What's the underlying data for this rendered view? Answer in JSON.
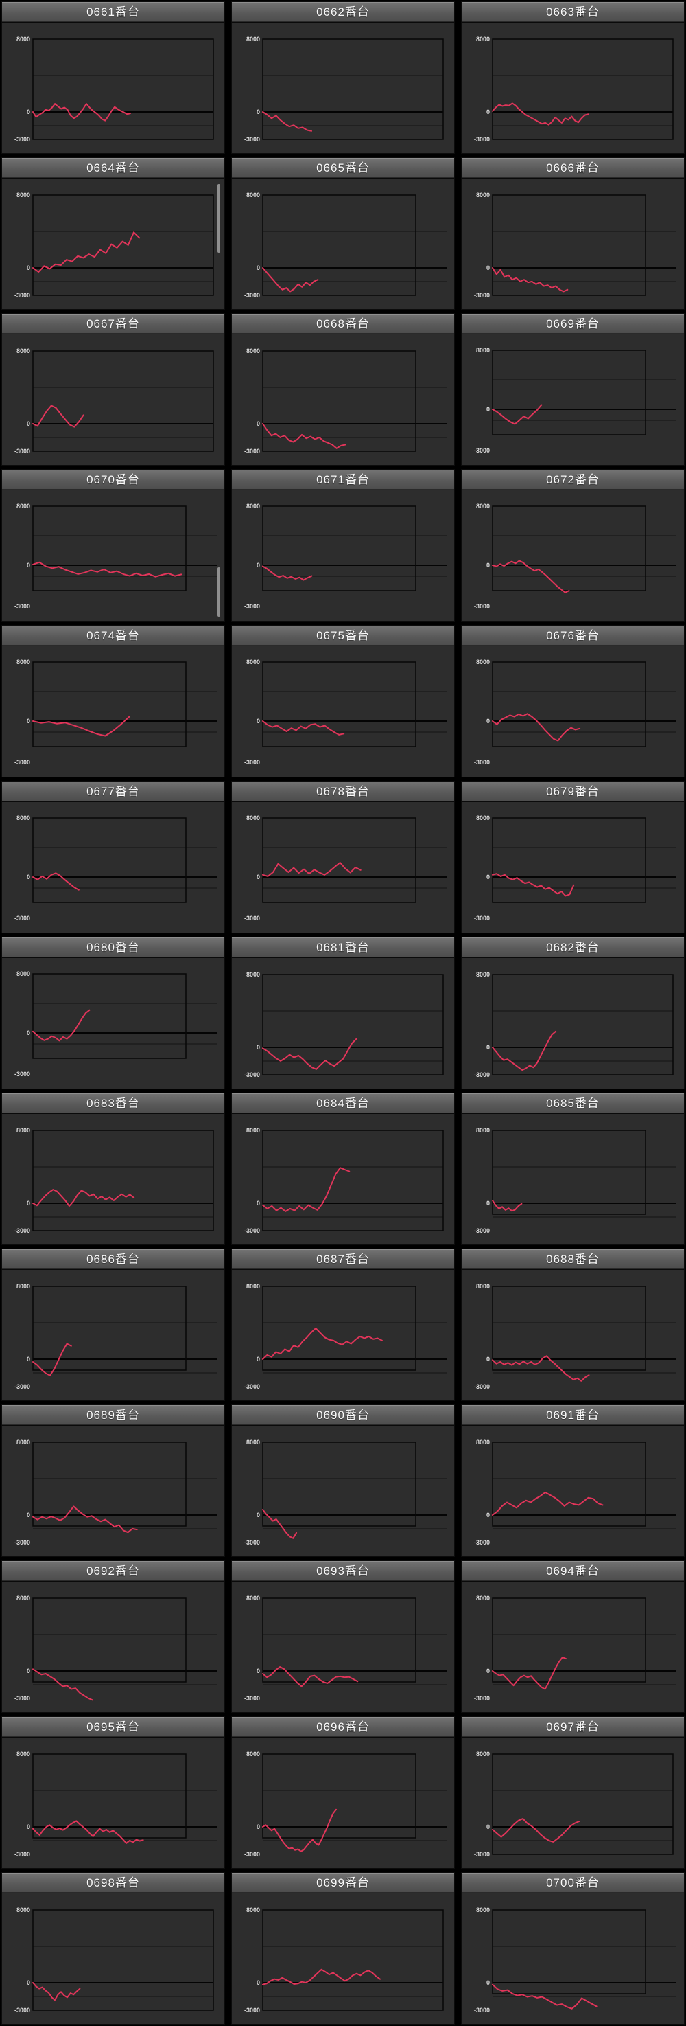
{
  "page": {
    "background": "#000000",
    "columns": 3,
    "rows": 13,
    "title_suffix": "番台"
  },
  "colors": {
    "cell_background": "#2d2d2d",
    "title_text": "#fafafa",
    "axis_text": "#dcdcdc",
    "gridline": "#1c1c1c",
    "zero_line": "#040404",
    "plot_frame": "#070707",
    "series_line": "#e2355a",
    "scrollbar": "#8f8f8f"
  },
  "axis_labels": {
    "top": "8000",
    "zero": "0",
    "bottom": "-3000"
  },
  "chart_config": {
    "type": "line",
    "ylim": [
      -3000,
      8000
    ],
    "gridlines": [
      8000,
      4000,
      0,
      -1500,
      -3000
    ],
    "legend": "none",
    "x_axis": "games played (unlabeled)",
    "y_axis": "payout balance (unlabeled)"
  },
  "chart_data": [
    {
      "machine": "0661番台",
      "id": "0661",
      "frame": "std",
      "span": 0.54,
      "values": [
        0,
        -550,
        -300,
        -100,
        250,
        150,
        450,
        900,
        600,
        350,
        500,
        250,
        -400,
        -700,
        -500,
        -100,
        350,
        900,
        500,
        150,
        -100,
        -400,
        -800,
        -950,
        -450,
        100,
        550,
        300,
        100,
        -50,
        -250,
        -150
      ]
    },
    {
      "machine": "0662番台",
      "id": "0662",
      "frame": "std",
      "span": 0.27,
      "values": [
        0,
        -300,
        -700,
        -400,
        -900,
        -1300,
        -1600,
        -1450,
        -1800,
        -1700,
        -2000,
        -2100
      ]
    },
    {
      "machine": "0663番台",
      "id": "0663",
      "frame": "std",
      "span": 0.53,
      "values": [
        100,
        500,
        800,
        650,
        750,
        700,
        950,
        700,
        300,
        0,
        -300,
        -500,
        -700,
        -900,
        -1100,
        -1300,
        -1200,
        -1400,
        -1100,
        -600,
        -900,
        -1200,
        -700,
        -850,
        -500,
        -950,
        -1150,
        -700,
        -350,
        -250
      ]
    },
    {
      "machine": "0664番台",
      "id": "0664",
      "frame": "std",
      "span": 0.59,
      "scrollbar": {
        "x": 314,
        "y": 8,
        "h": 100
      },
      "values": [
        0,
        -450,
        200,
        -100,
        400,
        300,
        900,
        700,
        1300,
        1100,
        1500,
        1200,
        2000,
        1600,
        2600,
        2200,
        2900,
        2500,
        3900,
        3300
      ]
    },
    {
      "machine": "0665番台",
      "id": "0665",
      "frame": "nw",
      "span": 0.36,
      "values": [
        0,
        -500,
        -1000,
        -1500,
        -2000,
        -2400,
        -2200,
        -2600,
        -2300,
        -1800,
        -2100,
        -1600,
        -1900,
        -1500,
        -1300
      ]
    },
    {
      "machine": "0666番台",
      "id": "0666",
      "frame": "nw",
      "span": 0.49,
      "values": [
        0,
        -700,
        -200,
        -1000,
        -800,
        -1300,
        -1100,
        -1500,
        -1300,
        -1600,
        -1500,
        -1800,
        -1600,
        -2000,
        -1900,
        -2200,
        -2000,
        -2400,
        -2600,
        -2400
      ]
    },
    {
      "machine": "0667番台",
      "id": "0667",
      "frame": "std",
      "span": 0.28,
      "values": [
        0,
        -250,
        600,
        1400,
        2000,
        1750,
        1100,
        500,
        -100,
        -350,
        200,
        950
      ]
    },
    {
      "machine": "0668番台",
      "id": "0668",
      "frame": "nw",
      "span": 0.54,
      "values": [
        0,
        -700,
        -1300,
        -1100,
        -1500,
        -1300,
        -1800,
        -2000,
        -1700,
        -1200,
        -1600,
        -1400,
        -1700,
        -1500,
        -1900,
        -2100,
        -2300,
        -2700,
        -2400,
        -2300
      ]
    },
    {
      "machine": "0669番台",
      "id": "0669",
      "frame": "nrc",
      "span": 0.32,
      "values": [
        0,
        -350,
        -800,
        -1300,
        -1700,
        -2000,
        -1500,
        -950,
        -1250,
        -650,
        -100,
        600
      ]
    },
    {
      "machine": "0670番台",
      "id": "0670",
      "frame": "nrc",
      "span": 0.97,
      "scrollbar": {
        "x": 314,
        "y": 112,
        "h": 72
      },
      "values": [
        100,
        400,
        -150,
        -400,
        -200,
        -600,
        -900,
        -1200,
        -1000,
        -700,
        -900,
        -550,
        -1000,
        -800,
        -1200,
        -1450,
        -1100,
        -1400,
        -1200,
        -1550,
        -1300,
        -1100,
        -1450,
        -1250
      ]
    },
    {
      "machine": "0671番台",
      "id": "0671",
      "frame": "nrc",
      "span": 0.32,
      "values": [
        -150,
        -450,
        -900,
        -1300,
        -1600,
        -1400,
        -1750,
        -1550,
        -1850,
        -1650,
        -2000,
        -1700,
        -1450
      ]
    },
    {
      "machine": "0672番台",
      "id": "0672",
      "frame": "nrc",
      "span": 0.5,
      "values": [
        0,
        -150,
        150,
        -100,
        250,
        500,
        250,
        600,
        350,
        -100,
        -450,
        -750,
        -550,
        -950,
        -1400,
        -1900,
        -2400,
        -2900,
        -3300,
        -3700,
        -3450
      ]
    },
    {
      "machine": "0674番台",
      "id": "0674",
      "frame": "nrc",
      "span": 0.63,
      "values": [
        0,
        -250,
        -100,
        -350,
        -200,
        -550,
        -900,
        -1350,
        -1750,
        -2000,
        -1300,
        -400,
        600
      ]
    },
    {
      "machine": "0675番台",
      "id": "0675",
      "frame": "nrc",
      "span": 0.53,
      "values": [
        0,
        -500,
        -800,
        -600,
        -1000,
        -1400,
        -950,
        -1250,
        -700,
        -1000,
        -500,
        -400,
        -800,
        -600,
        -1100,
        -1500,
        -1850,
        -1700
      ]
    },
    {
      "machine": "0676番台",
      "id": "0676",
      "frame": "nrc",
      "span": 0.57,
      "values": [
        0,
        -450,
        200,
        500,
        800,
        600,
        950,
        700,
        1000,
        600,
        100,
        -500,
        -1200,
        -1800,
        -2400,
        -2650,
        -1900,
        -1300,
        -900,
        -1150,
        -1000
      ]
    },
    {
      "machine": "0677番台",
      "id": "0677",
      "frame": "nrc",
      "span": 0.3,
      "values": [
        0,
        -350,
        100,
        -250,
        300,
        530,
        150,
        -400,
        -900,
        -1400,
        -1740
      ]
    },
    {
      "machine": "0678番台",
      "id": "0678",
      "frame": "nrc",
      "span": 0.64,
      "values": [
        300,
        100,
        650,
        1800,
        1200,
        650,
        1250,
        550,
        1050,
        450,
        1000,
        600,
        300,
        800,
        1400,
        1950,
        1150,
        600,
        1300,
        950
      ]
    },
    {
      "machine": "0679番台",
      "id": "0679",
      "frame": "nrc",
      "span": 0.53,
      "values": [
        300,
        450,
        100,
        300,
        -150,
        -350,
        -100,
        -500,
        -850,
        -700,
        -1050,
        -1350,
        -1150,
        -1650,
        -1450,
        -1850,
        -2250,
        -1950,
        -2550,
        -2350,
        -1100
      ]
    },
    {
      "machine": "0680番台",
      "id": "0680",
      "frame": "nrc",
      "span": 0.37,
      "values": [
        200,
        -250,
        -700,
        -1000,
        -800,
        -450,
        -650,
        -1050,
        -550,
        -800,
        -350,
        300,
        1100,
        1950,
        2700,
        3100
      ]
    },
    {
      "machine": "0681番台",
      "id": "0681",
      "frame": "std",
      "span": 0.52,
      "values": [
        -100,
        -400,
        -800,
        -1200,
        -1500,
        -1200,
        -800,
        -1100,
        -900,
        -1300,
        -1800,
        -2200,
        -2400,
        -1900,
        -1450,
        -1800,
        -2050,
        -1650,
        -1250,
        -400,
        450,
        950
      ]
    },
    {
      "machine": "0682番台",
      "id": "0682",
      "frame": "std",
      "span": 0.35,
      "values": [
        0,
        -500,
        -1000,
        -1400,
        -1300,
        -1600,
        -1900,
        -2200,
        -2500,
        -2300,
        -2000,
        -2200,
        -1700,
        -900,
        -100,
        700,
        1400,
        1750
      ]
    },
    {
      "machine": "0683番台",
      "id": "0683",
      "frame": "std",
      "span": 0.56,
      "values": [
        0,
        -250,
        300,
        800,
        1200,
        1500,
        1300,
        800,
        300,
        -300,
        200,
        900,
        1400,
        1200,
        800,
        1000,
        500,
        750,
        400,
        650,
        300,
        700,
        1000,
        700,
        950,
        600
      ]
    },
    {
      "machine": "0684番台",
      "id": "0684",
      "frame": "std",
      "span": 0.48,
      "values": [
        -200,
        -600,
        -300,
        -800,
        -500,
        -900,
        -600,
        -800,
        -300,
        -700,
        -200,
        -500,
        -750,
        -100,
        800,
        2000,
        3200,
        3900,
        3700,
        3500
      ]
    },
    {
      "machine": "0685番台",
      "id": "0685",
      "frame": "nrs",
      "span": 0.19,
      "values": [
        300,
        -250,
        -600,
        -400,
        -750,
        -550,
        -850,
        -700,
        -300,
        -50
      ]
    },
    {
      "machine": "0686番台",
      "id": "0686",
      "frame": "nrs",
      "span": 0.25,
      "values": [
        -300,
        -650,
        -1150,
        -1550,
        -1800,
        -1100,
        -100,
        900,
        1700,
        1450
      ]
    },
    {
      "machine": "0687番台",
      "id": "0687",
      "frame": "nrs",
      "span": 0.78,
      "values": [
        0,
        450,
        250,
        800,
        600,
        1100,
        850,
        1500,
        1300,
        1950,
        2400,
        2950,
        3400,
        2900,
        2400,
        2150,
        2050,
        1750,
        1600,
        1950,
        1700,
        2150,
        2500,
        2300,
        2500,
        2200,
        2300,
        2050
      ]
    },
    {
      "machine": "0688番台",
      "id": "0688",
      "frame": "nrs",
      "span": 0.63,
      "values": [
        -100,
        -500,
        -300,
        -600,
        -400,
        -650,
        -350,
        -550,
        -250,
        -500,
        -300,
        -600,
        -400,
        100,
        350,
        -100,
        -450,
        -850,
        -1250,
        -1650,
        -1950,
        -2250,
        -2100,
        -2400,
        -2000,
        -1750
      ]
    },
    {
      "machine": "0689番台",
      "id": "0689",
      "frame": "nrs",
      "span": 0.68,
      "values": [
        -200,
        -500,
        -200,
        -400,
        -150,
        -350,
        -600,
        -300,
        300,
        950,
        500,
        100,
        -200,
        -100,
        -450,
        -700,
        -500,
        -900,
        -1300,
        -1100,
        -1700,
        -1900,
        -1500,
        -1600
      ]
    },
    {
      "machine": "0690番台",
      "id": "0690",
      "frame": "nrs",
      "span": 0.22,
      "values": [
        600,
        100,
        -250,
        -650,
        -450,
        -950,
        -1450,
        -1950,
        -2350,
        -2550,
        -1950
      ]
    },
    {
      "machine": "0691番台",
      "id": "0691",
      "frame": "nrs",
      "span": 0.72,
      "values": [
        0,
        400,
        1000,
        1400,
        1100,
        800,
        1300,
        1600,
        1400,
        1800,
        2100,
        2500,
        2200,
        1900,
        1500,
        1000,
        1400,
        1200,
        1100,
        1500,
        1900,
        1800,
        1300,
        1100
      ]
    },
    {
      "machine": "0692番台",
      "id": "0692",
      "frame": "nrs",
      "span": 0.39,
      "values": [
        200,
        -100,
        -400,
        -300,
        -600,
        -900,
        -1300,
        -1700,
        -1600,
        -2000,
        -1900,
        -2400,
        -2700,
        -3000,
        -3200
      ]
    },
    {
      "machine": "0693番台",
      "id": "0693",
      "frame": "nrs",
      "span": 0.62,
      "values": [
        -300,
        -700,
        -400,
        100,
        450,
        200,
        -300,
        -800,
        -1300,
        -1700,
        -1200,
        -600,
        -500,
        -900,
        -1200,
        -1350,
        -1000,
        -650,
        -600,
        -700,
        -650,
        -900,
        -1150
      ]
    },
    {
      "machine": "0694番台",
      "id": "0694",
      "frame": "nrs",
      "span": 0.48,
      "values": [
        0,
        -300,
        -500,
        -400,
        -800,
        -1200,
        -1600,
        -1100,
        -700,
        -500,
        -700,
        -550,
        -1000,
        -1400,
        -1800,
        -2000,
        -1300,
        -500,
        300,
        1000,
        1500,
        1350
      ]
    },
    {
      "machine": "0695番台",
      "id": "0695",
      "frame": "nrs",
      "span": 0.72,
      "values": [
        -200,
        -600,
        -900,
        -400,
        0,
        200,
        -100,
        -300,
        -150,
        -350,
        -100,
        200,
        450,
        650,
        300,
        0,
        -300,
        -700,
        -1050,
        -600,
        -200,
        -500,
        -300,
        -600,
        -400,
        -700,
        -1000,
        -1400,
        -1800,
        -1500,
        -1700,
        -1400,
        -1550,
        -1450
      ]
    },
    {
      "machine": "0696番台",
      "id": "0696",
      "frame": "nrs",
      "span": 0.48,
      "values": [
        0,
        200,
        -100,
        -400,
        -200,
        -700,
        -1200,
        -1700,
        -2100,
        -2400,
        -2300,
        -2550,
        -2450,
        -2700,
        -2500,
        -2100,
        -1700,
        -1400,
        -1800,
        -2000,
        -1400,
        -700,
        0,
        800,
        1500,
        1900
      ]
    },
    {
      "machine": "0697番台",
      "id": "0697",
      "frame": "std",
      "span": 0.48,
      "values": [
        -300,
        -700,
        -1100,
        -700,
        -200,
        300,
        700,
        900,
        400,
        100,
        -300,
        -800,
        -1200,
        -1500,
        -1650,
        -1300,
        -900,
        -400,
        100,
        400,
        600
      ]
    },
    {
      "machine": "0698番台",
      "id": "0698",
      "frame": "std",
      "span": 0.26,
      "values": [
        0,
        -400,
        -650,
        -500,
        -850,
        -1100,
        -1600,
        -1900,
        -1300,
        -1000,
        -1400,
        -1600,
        -1150,
        -1300,
        -950,
        -650
      ]
    },
    {
      "machine": "0699番台",
      "id": "0699",
      "frame": "std",
      "span": 0.65,
      "values": [
        -200,
        -100,
        200,
        400,
        300,
        550,
        300,
        100,
        -150,
        -100,
        100,
        0,
        250,
        650,
        1050,
        1450,
        1200,
        900,
        1100,
        800,
        500,
        200,
        400,
        800,
        1000,
        800,
        1150,
        1350,
        1100,
        700,
        400
      ]
    },
    {
      "machine": "0700番台",
      "id": "0700",
      "frame": "nrs",
      "span": 0.68,
      "values": [
        -200,
        -700,
        -900,
        -800,
        -1200,
        -1400,
        -1300,
        -1550,
        -1450,
        -1650,
        -1550,
        -1850,
        -2150,
        -2450,
        -2350,
        -2650,
        -2850,
        -2400,
        -1700,
        -2000,
        -2300,
        -2600
      ]
    }
  ]
}
